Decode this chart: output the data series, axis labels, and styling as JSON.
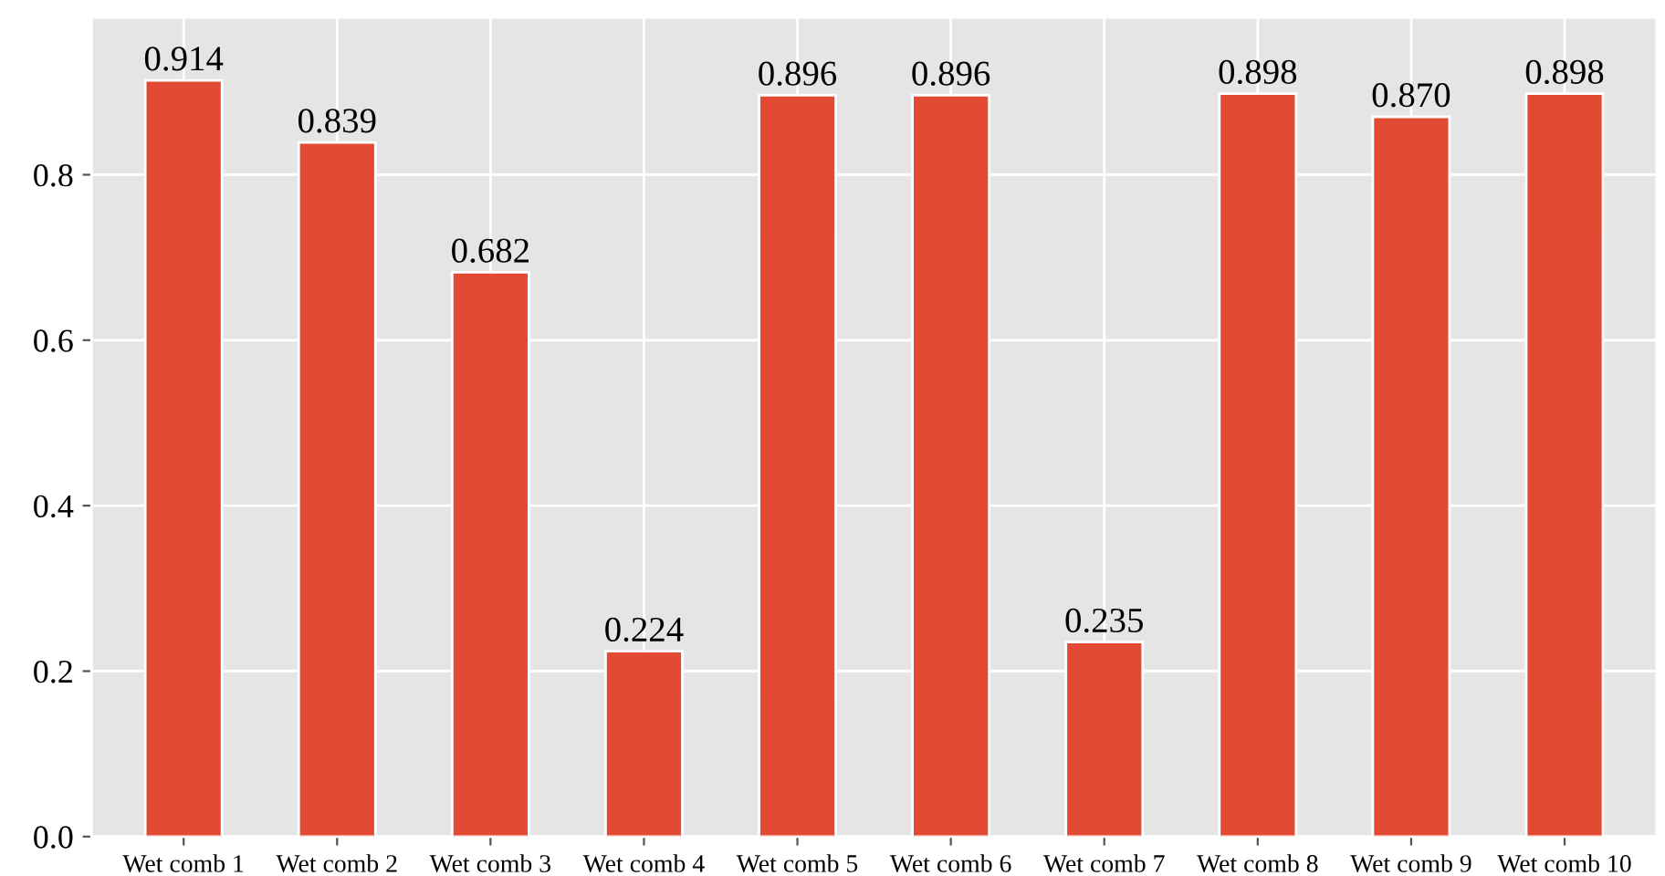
{
  "chart_data": {
    "type": "bar",
    "categories": [
      "Wet comb 1",
      "Wet comb 2",
      "Wet comb 3",
      "Wet comb 4",
      "Wet comb 5",
      "Wet comb 6",
      "Wet comb 7",
      "Wet comb 8",
      "Wet comb 9",
      "Wet comb 10"
    ],
    "values": [
      0.914,
      0.839,
      0.682,
      0.224,
      0.896,
      0.896,
      0.235,
      0.898,
      0.87,
      0.898
    ],
    "value_labels": [
      "0.914",
      "0.839",
      "0.682",
      "0.224",
      "0.896",
      "0.896",
      "0.235",
      "0.898",
      "0.870",
      "0.898"
    ],
    "color": "#e24a33",
    "ylim": [
      0,
      0.99
    ],
    "yticks": [
      {
        "value": 0,
        "label": "0.0"
      },
      0.2,
      0.4,
      0.6,
      0.8
    ],
    "grid": true
  }
}
